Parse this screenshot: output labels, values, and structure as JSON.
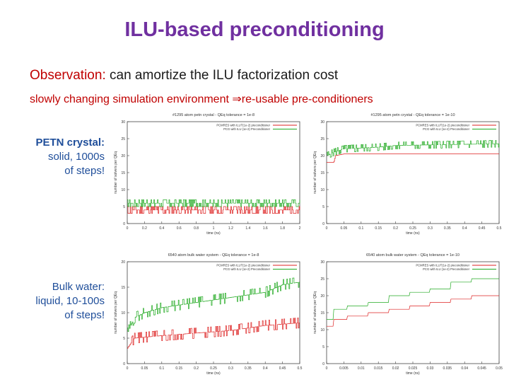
{
  "slide": {
    "title": "ILU-based preconditioning",
    "observation_label": "Observation:",
    "observation_text": "can amortize the ILU factorization cost",
    "subtext": "slowly changing simulation environment ⇒re-usable pre-conditioners",
    "row_labels": [
      {
        "line1": "PETN crystal:",
        "line2": "solid, 1000s",
        "line3": "of steps!"
      },
      {
        "line1": "Bulk water:",
        "line2": "liquid, 10-100s",
        "line3": "of steps!"
      }
    ]
  },
  "colors": {
    "red_series": "#dd2222",
    "green_series": "#22aa22",
    "title": "#7030a0",
    "accent": "#c00000",
    "side_text": "#1f4e9a"
  },
  "chart_data": [
    {
      "type": "line",
      "title": "#1295 atom petn crystal - QEq tolerance = 1e-8",
      "xlabel": "time (ns)",
      "ylabel": "number of solvers per QEq",
      "xlim": [
        0,
        2
      ],
      "ylim": [
        0,
        30
      ],
      "xticks": [
        "0",
        "0.2",
        "0.4",
        "0.6",
        "0.8",
        "1",
        "1.2",
        "1.4",
        "1.6",
        "1.8",
        "2"
      ],
      "yticks": [
        "0",
        "5",
        "10",
        "15",
        "20",
        "25",
        "30"
      ],
      "series": [
        {
          "name": "PCMRES with ILUT(1e-2) preconditioner",
          "color": "red",
          "x": [
            0,
            2
          ],
          "y": [
            4,
            4
          ],
          "noise": 1.5,
          "seed": 11
        },
        {
          "name": "PCG with ILU (1e-2) Preconditioner",
          "color": "green",
          "x": [
            0,
            2
          ],
          "y": [
            6,
            6
          ],
          "noise": 1.2,
          "seed": 17
        }
      ]
    },
    {
      "type": "line",
      "title": "#1295 atom petn crystal - QEq tolerance = 1e-10",
      "xlabel": "time (ns)",
      "ylabel": "number of solvers per QEq",
      "xlim": [
        0,
        0.5
      ],
      "ylim": [
        0,
        30
      ],
      "xticks": [
        "0",
        "0.05",
        "0.1",
        "0.15",
        "0.2",
        "0.25",
        "0.3",
        "0.35",
        "0.4",
        "0.45",
        "0.5"
      ],
      "yticks": [
        "0",
        "5",
        "10",
        "15",
        "20",
        "25",
        "30"
      ],
      "series": [
        {
          "name": "PCMRES with ILUT(1e-2) preconditioner",
          "color": "red",
          "x": [
            0,
            0.02,
            0.025,
            0.05,
            0.5
          ],
          "y": [
            18,
            18,
            20,
            20.5,
            20.5
          ],
          "noise": 0.2,
          "seed": 3
        },
        {
          "name": "PCG with ILU (1e-2) Preconditioner",
          "color": "green",
          "x": [
            0,
            0.02,
            0.05,
            0.15,
            0.2,
            0.5
          ],
          "y": [
            20,
            21,
            22,
            22.5,
            23,
            23.5
          ],
          "noise": 1.0,
          "seed": 5
        }
      ]
    },
    {
      "type": "line",
      "title": "6540 atom bulk water system - QEq tolerance = 1e-8",
      "xlabel": "time (ns)",
      "ylabel": "number of solvers per QEq",
      "xlim": [
        0,
        0.5
      ],
      "ylim": [
        0,
        20
      ],
      "xticks": [
        "0",
        "0.05",
        "0.1",
        "0.15",
        "0.2",
        "0.25",
        "0.3",
        "0.35",
        "0.4",
        "0.45",
        "0.5"
      ],
      "yticks": [
        "0",
        "5",
        "10",
        "15",
        "20"
      ],
      "series": [
        {
          "name": "PCMRES with ILUT(1e-2) preconditioner",
          "color": "red",
          "x": [
            0,
            0.02,
            0.1,
            0.2,
            0.3,
            0.4,
            0.5
          ],
          "y": [
            3,
            5,
            5.5,
            6,
            6.5,
            7.5,
            8
          ],
          "noise": 0.8,
          "seed": 21
        },
        {
          "name": "PCG with ILU (1e-2) Preconditioner",
          "color": "green",
          "x": [
            0,
            0.02,
            0.05,
            0.1,
            0.2,
            0.3,
            0.4,
            0.45,
            0.5
          ],
          "y": [
            6,
            9,
            10,
            11,
            12,
            13,
            14,
            15.5,
            16
          ],
          "noise": 0.7,
          "seed": 29
        }
      ]
    },
    {
      "type": "line",
      "title": "6540 atom bulk water system - QEq tolerance = 1e-10",
      "xlabel": "time (ns)",
      "ylabel": "number of solvers per QEq",
      "xlim": [
        0,
        0.05
      ],
      "ylim": [
        0,
        30
      ],
      "xticks": [
        "0",
        "0.005",
        "0.01",
        "0.015",
        "0.02",
        "0.025",
        "0.03",
        "0.035",
        "0.04",
        "0.045",
        "0.05"
      ],
      "yticks": [
        "0",
        "5",
        "10",
        "15",
        "20",
        "25",
        "30"
      ],
      "series": [
        {
          "name": "PCMRES with ILUT(1e-2) preconditioner",
          "color": "red",
          "x": [
            0,
            0.002,
            0.006,
            0.012,
            0.018,
            0.024,
            0.03,
            0.036,
            0.042,
            0.05
          ],
          "y": [
            11,
            13,
            14,
            15,
            16,
            17,
            18,
            19,
            20,
            21
          ],
          "noise": 0,
          "seed": 1,
          "stepped": true
        },
        {
          "name": "PCG with ILU (1e-2) Preconditioner",
          "color": "green",
          "x": [
            0,
            0.002,
            0.006,
            0.012,
            0.018,
            0.024,
            0.03,
            0.036,
            0.042,
            0.05
          ],
          "y": [
            13,
            16,
            17,
            18,
            20,
            21,
            22,
            24,
            25,
            26
          ],
          "noise": 0,
          "seed": 2,
          "stepped": true
        }
      ]
    }
  ]
}
